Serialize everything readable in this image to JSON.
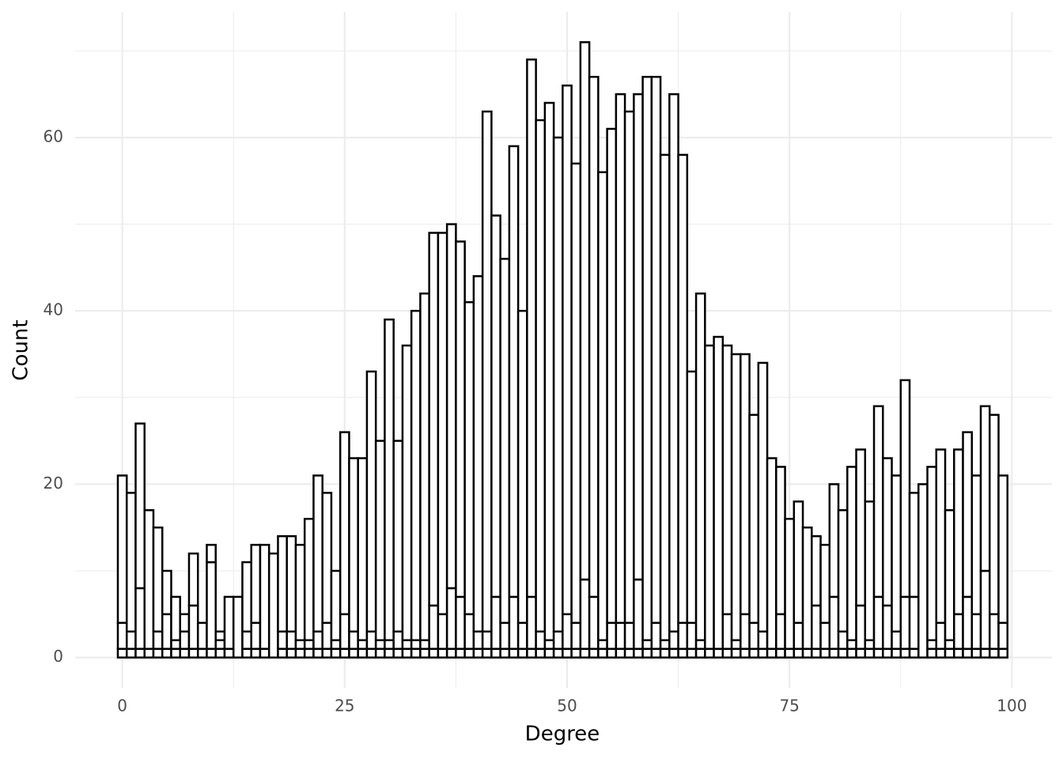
{
  "chart_data": {
    "type": "histogram",
    "x_label": "Degree",
    "y_label": "Count",
    "bins": [
      -0.5,
      0.5,
      1.5,
      2.5,
      3.5,
      4.5,
      5.5,
      6.5,
      7.5,
      8.5,
      9.5,
      10.5,
      11.5,
      12.5,
      13.5,
      14.5,
      15.5,
      16.5,
      17.5,
      18.5,
      19.5,
      20.5,
      21.5,
      22.5,
      23.5,
      24.5,
      25.5,
      26.5,
      27.5,
      28.5,
      29.5,
      30.5,
      31.5,
      32.5,
      33.5,
      34.5,
      35.5,
      36.5,
      37.5,
      38.5,
      39.5,
      40.5,
      41.5,
      42.5,
      43.5,
      44.5,
      45.5,
      46.5,
      47.5,
      48.5,
      49.5,
      50.5,
      51.5,
      52.5,
      53.5,
      54.5,
      55.5,
      56.5,
      57.5,
      58.5,
      59.5,
      60.5,
      61.5,
      62.5,
      63.5,
      64.5,
      65.5,
      66.5,
      67.5,
      68.5,
      69.5,
      70.5,
      71.5,
      72.5,
      73.5,
      74.5,
      75.5,
      76.5,
      77.5,
      78.5,
      79.5,
      80.5,
      81.5,
      82.5,
      83.5,
      84.5,
      85.5,
      86.5,
      87.5,
      88.5,
      89.5,
      90.5,
      91.5,
      92.5,
      93.5,
      94.5,
      95.5,
      96.5,
      97.5,
      98.5,
      99.5
    ],
    "series": [
      {
        "color": "#ffffff",
        "values": [
          1,
          1,
          1,
          1,
          1,
          1,
          1,
          1,
          1,
          1,
          1,
          1,
          1,
          0,
          1,
          1,
          1,
          0,
          1,
          1,
          1,
          1,
          1,
          1,
          1,
          1,
          1,
          1,
          1,
          1,
          1,
          1,
          1,
          1,
          1,
          1,
          1,
          1,
          1,
          1,
          1,
          1,
          1,
          1,
          1,
          1,
          1,
          1,
          1,
          1,
          1,
          1,
          1,
          1,
          1,
          1,
          1,
          1,
          1,
          1,
          1,
          1,
          1,
          1,
          1,
          1,
          1,
          1,
          1,
          1,
          1,
          1,
          1,
          1,
          1,
          1,
          1,
          1,
          1,
          1,
          1,
          1,
          1,
          1,
          1,
          1,
          1,
          1,
          1,
          1,
          0,
          1,
          1,
          1,
          1,
          1,
          1,
          1,
          1,
          1
        ]
      },
      {
        "color": "#ffffff",
        "values": [
          3,
          2,
          7,
          0,
          2,
          4,
          1,
          2,
          5,
          0,
          10,
          1,
          0,
          0,
          2,
          3,
          0,
          0,
          2,
          2,
          1,
          1,
          2,
          3,
          1,
          4,
          2,
          1,
          2,
          1,
          1,
          2,
          1,
          1,
          1,
          5,
          4,
          7,
          6,
          4,
          2,
          2,
          6,
          3,
          6,
          3,
          6,
          2,
          1,
          2,
          4,
          3,
          8,
          6,
          1,
          3,
          3,
          3,
          8,
          1,
          3,
          1,
          2,
          3,
          3,
          1,
          0,
          0,
          4,
          1,
          4,
          3,
          2,
          0,
          4,
          0,
          3,
          0,
          5,
          3,
          6,
          2,
          1,
          5,
          1,
          6,
          5,
          2,
          6,
          6,
          0,
          1,
          3,
          1,
          4,
          6,
          4,
          9,
          4,
          3
        ]
      },
      {
        "color": "#ffffff",
        "values": [
          17,
          16,
          19,
          16,
          12,
          5,
          5,
          2,
          6,
          3,
          2,
          1,
          6,
          7,
          8,
          9,
          12,
          12,
          11,
          11,
          11,
          14,
          18,
          15,
          8,
          21,
          20,
          21,
          30,
          23,
          37,
          22,
          34,
          38,
          40,
          43,
          44,
          42,
          41,
          36,
          41,
          60,
          44,
          42,
          52,
          36,
          62,
          59,
          62,
          57,
          61,
          53,
          62,
          60,
          54,
          57,
          61,
          59,
          56,
          65,
          63,
          56,
          62,
          54,
          29,
          40,
          35,
          36,
          31,
          33,
          30,
          24,
          31,
          22,
          17,
          15,
          14,
          14,
          8,
          9,
          13,
          14,
          20,
          18,
          16,
          22,
          17,
          18,
          25,
          12,
          20,
          20,
          20,
          15,
          19,
          19,
          16,
          19,
          23,
          17
        ]
      }
    ],
    "edgecolor": "#000000",
    "xlim": [
      -5.3,
      104.5
    ],
    "ylim": [
      -3.5,
      74.5
    ],
    "xticks": [
      0,
      25,
      50,
      75,
      100
    ],
    "yticks": [
      0,
      20,
      40,
      60
    ],
    "grid": true,
    "minor_grid": true
  }
}
